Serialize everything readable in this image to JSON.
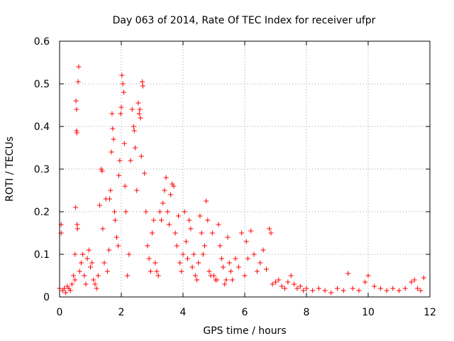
{
  "chart_data": {
    "type": "scatter",
    "title": "Day 063 of 2014, Rate Of TEC Index for receiver ufpr",
    "xlabel": "GPS time / hours",
    "ylabel": "ROTI / TECUs",
    "xlim": [
      0,
      12
    ],
    "ylim": [
      0,
      0.6
    ],
    "xticks": [
      0,
      2,
      4,
      6,
      8,
      10,
      12
    ],
    "xtick_labels": [
      "0",
      "2",
      "4",
      "6",
      "8",
      "10",
      "12"
    ],
    "yticks": [
      0,
      0.1,
      0.2,
      0.3,
      0.4,
      0.5,
      0.6
    ],
    "ytick_labels": [
      "0",
      "0.1",
      "0.2",
      "0.3",
      "0.4",
      "0.5",
      "0.6"
    ],
    "grid": true,
    "marker": "+",
    "color": "#ff0000",
    "series": [
      {
        "name": "ROTI",
        "points": [
          [
            0.0,
            0.02
          ],
          [
            0.05,
            0.17
          ],
          [
            0.05,
            0.15
          ],
          [
            0.1,
            0.015
          ],
          [
            0.15,
            0.02
          ],
          [
            0.2,
            0.01
          ],
          [
            0.25,
            0.025
          ],
          [
            0.3,
            0.02
          ],
          [
            0.35,
            0.015
          ],
          [
            0.4,
            0.03
          ],
          [
            0.45,
            0.05
          ],
          [
            0.5,
            0.04
          ],
          [
            0.5,
            0.1
          ],
          [
            0.52,
            0.21
          ],
          [
            0.53,
            0.46
          ],
          [
            0.55,
            0.44
          ],
          [
            0.55,
            0.39
          ],
          [
            0.56,
            0.385
          ],
          [
            0.57,
            0.17
          ],
          [
            0.58,
            0.16
          ],
          [
            0.6,
            0.505
          ],
          [
            0.62,
            0.54
          ],
          [
            0.65,
            0.06
          ],
          [
            0.7,
            0.08
          ],
          [
            0.75,
            0.1
          ],
          [
            0.8,
            0.05
          ],
          [
            0.85,
            0.03
          ],
          [
            0.9,
            0.09
          ],
          [
            0.95,
            0.11
          ],
          [
            1.0,
            0.07
          ],
          [
            1.05,
            0.08
          ],
          [
            1.1,
            0.04
          ],
          [
            1.15,
            0.03
          ],
          [
            1.2,
            0.02
          ],
          [
            1.25,
            0.05
          ],
          [
            1.3,
            0.215
          ],
          [
            1.35,
            0.3
          ],
          [
            1.38,
            0.295
          ],
          [
            1.4,
            0.16
          ],
          [
            1.45,
            0.08
          ],
          [
            1.5,
            0.23
          ],
          [
            1.55,
            0.06
          ],
          [
            1.6,
            0.11
          ],
          [
            1.62,
            0.23
          ],
          [
            1.65,
            0.25
          ],
          [
            1.68,
            0.34
          ],
          [
            1.7,
            0.43
          ],
          [
            1.72,
            0.395
          ],
          [
            1.75,
            0.37
          ],
          [
            1.78,
            0.2
          ],
          [
            1.8,
            0.18
          ],
          [
            1.85,
            0.14
          ],
          [
            1.9,
            0.12
          ],
          [
            1.92,
            0.285
          ],
          [
            1.95,
            0.32
          ],
          [
            1.98,
            0.43
          ],
          [
            2.0,
            0.445
          ],
          [
            2.02,
            0.52
          ],
          [
            2.05,
            0.5
          ],
          [
            2.08,
            0.48
          ],
          [
            2.1,
            0.36
          ],
          [
            2.12,
            0.26
          ],
          [
            2.15,
            0.2
          ],
          [
            2.2,
            0.05
          ],
          [
            2.25,
            0.1
          ],
          [
            2.3,
            0.32
          ],
          [
            2.35,
            0.44
          ],
          [
            2.4,
            0.4
          ],
          [
            2.42,
            0.39
          ],
          [
            2.45,
            0.35
          ],
          [
            2.5,
            0.25
          ],
          [
            2.55,
            0.455
          ],
          [
            2.58,
            0.43
          ],
          [
            2.6,
            0.44
          ],
          [
            2.62,
            0.42
          ],
          [
            2.65,
            0.33
          ],
          [
            2.68,
            0.505
          ],
          [
            2.7,
            0.495
          ],
          [
            2.75,
            0.29
          ],
          [
            2.8,
            0.2
          ],
          [
            2.85,
            0.12
          ],
          [
            2.9,
            0.09
          ],
          [
            2.95,
            0.06
          ],
          [
            3.0,
            0.15
          ],
          [
            3.05,
            0.18
          ],
          [
            3.1,
            0.08
          ],
          [
            3.15,
            0.06
          ],
          [
            3.2,
            0.05
          ],
          [
            3.25,
            0.2
          ],
          [
            3.3,
            0.18
          ],
          [
            3.35,
            0.22
          ],
          [
            3.4,
            0.25
          ],
          [
            3.45,
            0.28
          ],
          [
            3.5,
            0.2
          ],
          [
            3.55,
            0.17
          ],
          [
            3.6,
            0.24
          ],
          [
            3.65,
            0.265
          ],
          [
            3.7,
            0.26
          ],
          [
            3.75,
            0.15
          ],
          [
            3.8,
            0.12
          ],
          [
            3.85,
            0.19
          ],
          [
            3.9,
            0.08
          ],
          [
            3.95,
            0.06
          ],
          [
            4.0,
            0.1
          ],
          [
            4.05,
            0.2
          ],
          [
            4.1,
            0.13
          ],
          [
            4.15,
            0.09
          ],
          [
            4.2,
            0.18
          ],
          [
            4.25,
            0.16
          ],
          [
            4.3,
            0.07
          ],
          [
            4.35,
            0.1
          ],
          [
            4.4,
            0.05
          ],
          [
            4.45,
            0.04
          ],
          [
            4.5,
            0.08
          ],
          [
            4.55,
            0.19
          ],
          [
            4.6,
            0.15
          ],
          [
            4.65,
            0.1
          ],
          [
            4.7,
            0.12
          ],
          [
            4.75,
            0.225
          ],
          [
            4.8,
            0.18
          ],
          [
            4.85,
            0.06
          ],
          [
            4.9,
            0.05
          ],
          [
            4.95,
            0.15
          ],
          [
            5.0,
            0.05
          ],
          [
            5.05,
            0.04
          ],
          [
            5.1,
            0.04
          ],
          [
            5.15,
            0.17
          ],
          [
            5.2,
            0.12
          ],
          [
            5.25,
            0.09
          ],
          [
            5.3,
            0.07
          ],
          [
            5.35,
            0.03
          ],
          [
            5.4,
            0.04
          ],
          [
            5.45,
            0.14
          ],
          [
            5.5,
            0.08
          ],
          [
            5.55,
            0.06
          ],
          [
            5.6,
            0.04
          ],
          [
            5.7,
            0.09
          ],
          [
            5.8,
            0.07
          ],
          [
            5.9,
            0.15
          ],
          [
            6.0,
            0.05
          ],
          [
            6.05,
            0.13
          ],
          [
            6.1,
            0.09
          ],
          [
            6.2,
            0.155
          ],
          [
            6.3,
            0.1
          ],
          [
            6.4,
            0.06
          ],
          [
            6.5,
            0.08
          ],
          [
            6.6,
            0.11
          ],
          [
            6.7,
            0.065
          ],
          [
            6.8,
            0.16
          ],
          [
            6.85,
            0.15
          ],
          [
            6.9,
            0.03
          ],
          [
            7.0,
            0.035
          ],
          [
            7.1,
            0.04
          ],
          [
            7.2,
            0.025
          ],
          [
            7.3,
            0.02
          ],
          [
            7.4,
            0.035
          ],
          [
            7.5,
            0.05
          ],
          [
            7.6,
            0.03
          ],
          [
            7.7,
            0.02
          ],
          [
            7.8,
            0.025
          ],
          [
            7.9,
            0.015
          ],
          [
            8.0,
            0.02
          ],
          [
            8.2,
            0.015
          ],
          [
            8.4,
            0.02
          ],
          [
            8.6,
            0.015
          ],
          [
            8.8,
            0.01
          ],
          [
            9.0,
            0.02
          ],
          [
            9.2,
            0.015
          ],
          [
            9.35,
            0.055
          ],
          [
            9.5,
            0.02
          ],
          [
            9.7,
            0.015
          ],
          [
            9.9,
            0.035
          ],
          [
            10.0,
            0.05
          ],
          [
            10.2,
            0.025
          ],
          [
            10.4,
            0.02
          ],
          [
            10.6,
            0.015
          ],
          [
            10.8,
            0.02
          ],
          [
            11.0,
            0.015
          ],
          [
            11.2,
            0.02
          ],
          [
            11.4,
            0.035
          ],
          [
            11.5,
            0.04
          ],
          [
            11.6,
            0.02
          ],
          [
            11.7,
            0.015
          ],
          [
            11.8,
            0.045
          ]
        ]
      }
    ]
  }
}
